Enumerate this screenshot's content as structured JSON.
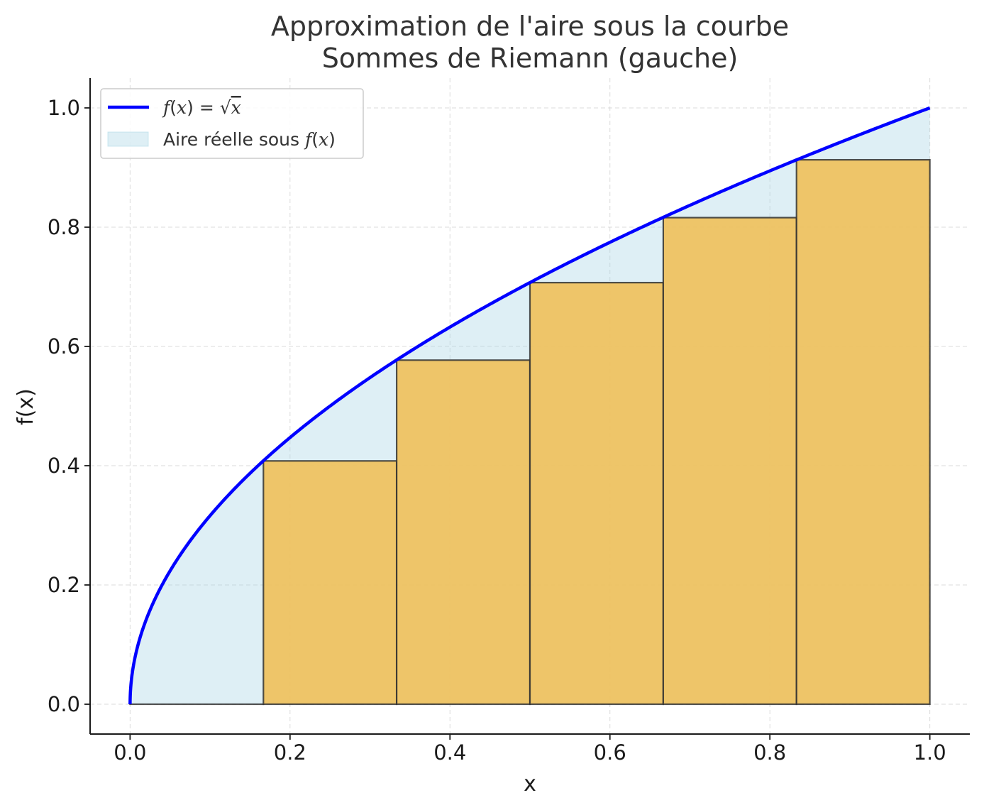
{
  "chart_data": {
    "type": "area",
    "title": "Approximation de l'aire sous la courbe",
    "subtitle": "Sommes de Riemann (gauche)",
    "xlabel": "x",
    "ylabel": "f(x)",
    "xlim": [
      -0.05,
      1.05
    ],
    "ylim": [
      -0.05,
      1.05
    ],
    "x_ticks": [
      0.0,
      0.2,
      0.4,
      0.6,
      0.8,
      1.0
    ],
    "x_tick_labels": [
      "0.0",
      "0.2",
      "0.4",
      "0.6",
      "0.8",
      "1.0"
    ],
    "y_ticks": [
      0.0,
      0.2,
      0.4,
      0.6,
      0.8,
      1.0
    ],
    "y_tick_labels": [
      "0.0",
      "0.2",
      "0.4",
      "0.6",
      "0.8",
      "1.0"
    ],
    "grid": true,
    "legend_position": "top-left",
    "function": "sqrt",
    "x_domain": [
      0,
      1
    ],
    "curve_color": "#0000ff",
    "area_color": "#add8e6",
    "rect_color": "#f0c05a",
    "rect_edge_color": "#333333",
    "rectangles": [
      {
        "x0": 0.0,
        "x1": 0.1667,
        "height": 0.0
      },
      {
        "x0": 0.1667,
        "x1": 0.3333,
        "height": 0.408
      },
      {
        "x0": 0.3333,
        "x1": 0.5,
        "height": 0.577
      },
      {
        "x0": 0.5,
        "x1": 0.6667,
        "height": 0.707
      },
      {
        "x0": 0.6667,
        "x1": 0.8333,
        "height": 0.816
      },
      {
        "x0": 0.8333,
        "x1": 1.0,
        "height": 0.913
      }
    ],
    "legend": [
      {
        "label_parts": [
          "f",
          "(",
          "x",
          ") = √",
          "x"
        ],
        "type": "line"
      },
      {
        "label_parts": [
          "Aire réelle sous ",
          "f",
          "(",
          "x",
          ")"
        ],
        "type": "patch"
      }
    ]
  }
}
